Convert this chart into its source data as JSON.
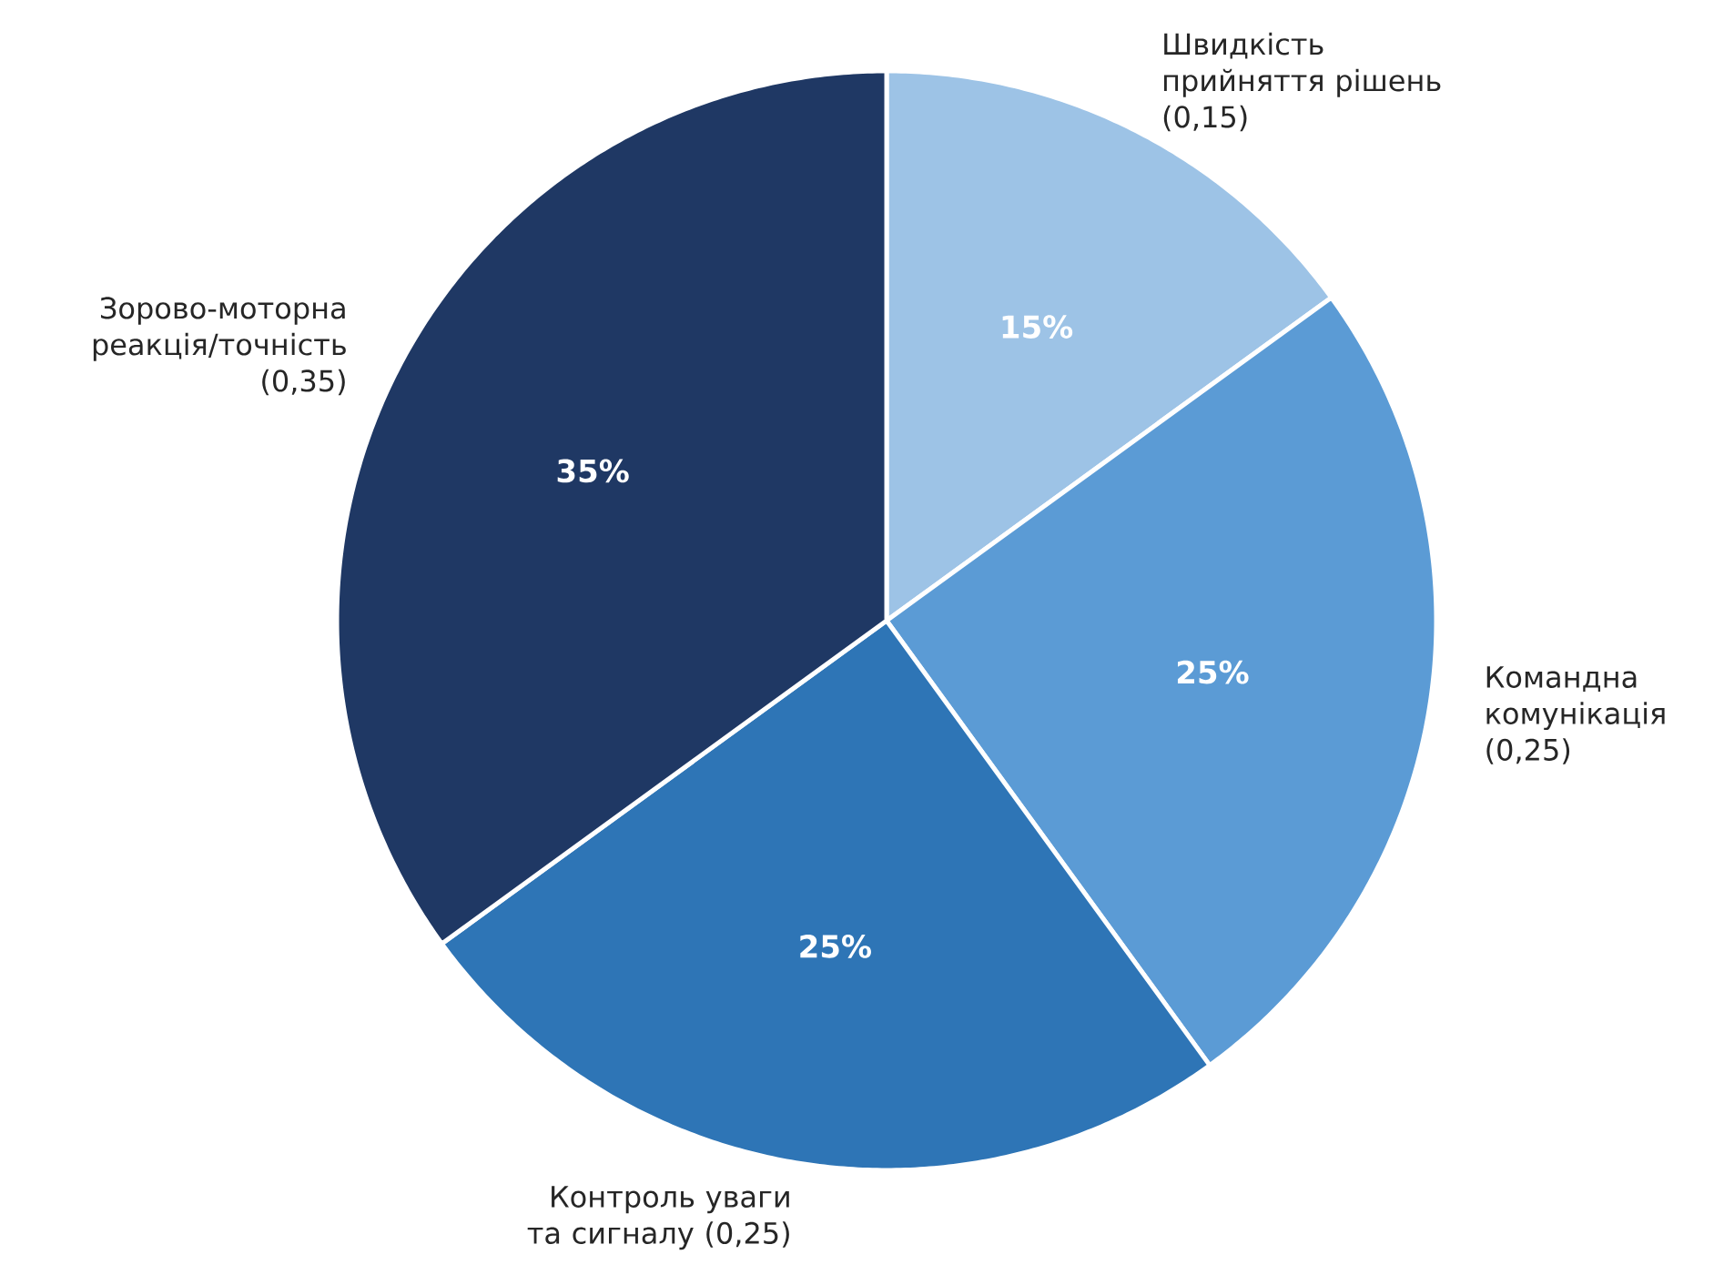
{
  "chart_data": {
    "type": "pie",
    "categories": [
      "Швидкість прийняття рішень (0,15)",
      "Командна комунікація (0,25)",
      "Контроль уваги та сигналу (0,25)",
      "Зорово-моторна реакція/точність (0,35)"
    ],
    "values": [
      15,
      25,
      25,
      35
    ],
    "colors": [
      "#9dc3e6",
      "#5b9bd5",
      "#2e75b6",
      "#1f3864"
    ],
    "value_labels": [
      "15%",
      "25%",
      "25%",
      "35%"
    ]
  }
}
